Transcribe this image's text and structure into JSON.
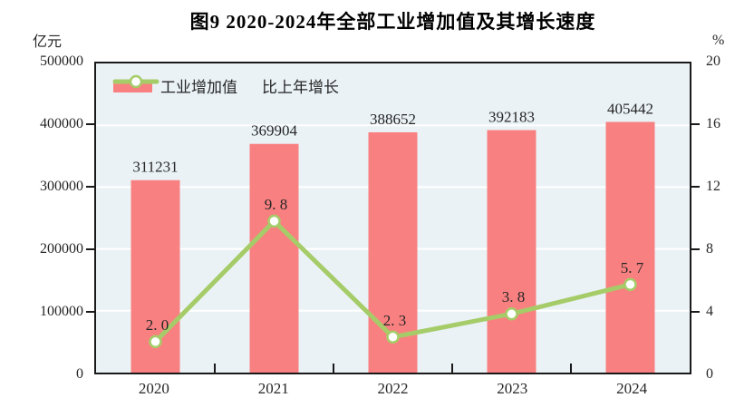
{
  "chart_data": {
    "type": "bar",
    "subtype": "bar-line-combo",
    "title": "图9  2020-2024年全部工业增加值及其增长速度",
    "categories": [
      "2020",
      "2021",
      "2022",
      "2023",
      "2024"
    ],
    "series": [
      {
        "name": "工业增加值",
        "type": "bar",
        "axis": "left",
        "values": [
          311231,
          369904,
          388652,
          392183,
          405442
        ],
        "labels": [
          "311231",
          "369904",
          "388652",
          "392183",
          "405442"
        ],
        "color": "#f98080"
      },
      {
        "name": "比上年增长",
        "type": "line",
        "axis": "right",
        "values": [
          2.0,
          9.8,
          2.3,
          3.8,
          5.7
        ],
        "labels": [
          "2. 0",
          "9. 8",
          "2. 3",
          "3. 8",
          "5. 7"
        ],
        "color": "#a5cc68",
        "marker_fill": "#ffffff"
      }
    ],
    "left_axis": {
      "unit": "亿元",
      "min": 0,
      "max": 500000,
      "step": 100000,
      "ticks": [
        "500000",
        "400000",
        "300000",
        "200000",
        "100000",
        "0"
      ]
    },
    "right_axis": {
      "unit": "%",
      "min": 0,
      "max": 20,
      "step": 4,
      "ticks": [
        "20",
        "16",
        "12",
        "8",
        "4",
        "0"
      ]
    },
    "legend_position": "top-left-inside",
    "grid": "horizontal",
    "plot_bg": "#eaf2f6",
    "grid_color": "#ffffff",
    "border_color": "#1a1a1a"
  }
}
